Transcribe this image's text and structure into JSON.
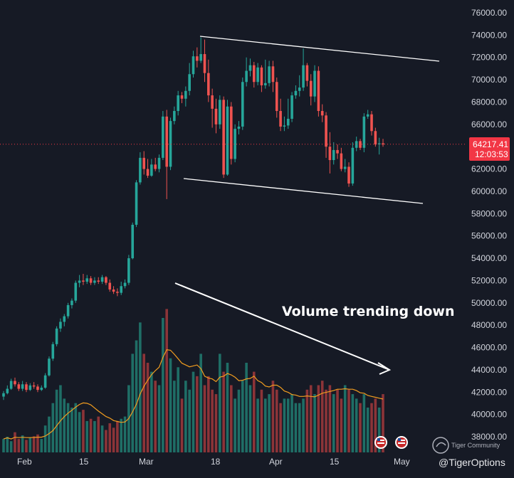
{
  "chart_data": {
    "type": "candlestick",
    "title": "",
    "y_ticks": [
      "76000.00",
      "74000.00",
      "72000.00",
      "70000.00",
      "68000.00",
      "66000.00",
      "64000.00",
      "62000.00",
      "60000.00",
      "58000.00",
      "56000.00",
      "54000.00",
      "52000.00",
      "50000.00",
      "48000.00",
      "46000.00",
      "44000.00",
      "42000.00",
      "40000.00",
      "38000.00"
    ],
    "x_ticks": [
      "Feb",
      "15",
      "Mar",
      "18",
      "Apr",
      "15",
      "May"
    ],
    "ylim": [
      37000,
      77000
    ],
    "grid": false,
    "last_price": "64217.41",
    "countdown": "12:03:53",
    "annotation": "Volume trending down",
    "colors": {
      "bg": "#161a25",
      "up": "#26a69a",
      "down": "#ef5350",
      "vol_up": "#1f6e66",
      "vol_down": "#8c3438",
      "ma": "#f29d1f",
      "price_tag": "#f23645",
      "line": "#ffffff"
    },
    "candles": [
      [
        41600,
        41900,
        41300,
        42100
      ],
      [
        41900,
        42300,
        41800,
        42600
      ],
      [
        42300,
        43000,
        42200,
        43200
      ],
      [
        43000,
        42700,
        42500,
        43300
      ],
      [
        42700,
        42300,
        42100,
        42900
      ],
      [
        42300,
        42700,
        42100,
        43000
      ],
      [
        42700,
        42200,
        42000,
        42900
      ],
      [
        42200,
        42600,
        42100,
        42800
      ],
      [
        42600,
        42500,
        42300,
        42900
      ],
      [
        42500,
        42200,
        42000,
        42700
      ],
      [
        42200,
        42400,
        42100,
        42600
      ],
      [
        42400,
        43500,
        42300,
        43700
      ],
      [
        43500,
        45000,
        43400,
        45200
      ],
      [
        45000,
        46300,
        44800,
        46500
      ],
      [
        46300,
        47700,
        46100,
        47900
      ],
      [
        47700,
        48300,
        47400,
        48600
      ],
      [
        48300,
        48800,
        47900,
        49000
      ],
      [
        48800,
        49800,
        48600,
        50000
      ],
      [
        49800,
        50200,
        49500,
        50400
      ],
      [
        50200,
        51800,
        50000,
        52000
      ],
      [
        51800,
        52000,
        51400,
        52500
      ],
      [
        52000,
        51900,
        51600,
        52600
      ],
      [
        51900,
        52200,
        51700,
        52500
      ],
      [
        52200,
        51800,
        51600,
        52400
      ],
      [
        51800,
        52000,
        51600,
        52300
      ],
      [
        52000,
        51900,
        51700,
        52300
      ],
      [
        51900,
        52300,
        51700,
        52500
      ],
      [
        52300,
        51800,
        51600,
        52400
      ],
      [
        51800,
        51200,
        51000,
        52100
      ],
      [
        51200,
        51000,
        50800,
        51500
      ],
      [
        51000,
        50900,
        50600,
        51300
      ],
      [
        50900,
        51500,
        50700,
        51900
      ],
      [
        51500,
        51800,
        51300,
        52100
      ],
      [
        51800,
        54000,
        51600,
        54300
      ],
      [
        54000,
        57000,
        53900,
        57200
      ],
      [
        57000,
        60800,
        56800,
        61000
      ],
      [
        60800,
        63000,
        60600,
        63500
      ],
      [
        63000,
        62000,
        61500,
        63600
      ],
      [
        62000,
        61400,
        61200,
        62900
      ],
      [
        61400,
        62400,
        61300,
        62900
      ],
      [
        62400,
        62000,
        61800,
        63000
      ],
      [
        62000,
        63000,
        61700,
        63300
      ],
      [
        63000,
        66700,
        62800,
        67200
      ],
      [
        66700,
        62200,
        59300,
        67300
      ],
      [
        62200,
        66300,
        61900,
        66600
      ],
      [
        66300,
        67200,
        66000,
        67600
      ],
      [
        67200,
        68600,
        66800,
        69000
      ],
      [
        68600,
        68300,
        67900,
        68900
      ],
      [
        68300,
        69000,
        67600,
        69400
      ],
      [
        69000,
        70500,
        68600,
        71500
      ],
      [
        70500,
        72100,
        70200,
        72600
      ],
      [
        72100,
        71700,
        71100,
        72900
      ],
      [
        71700,
        72300,
        71500,
        73800
      ],
      [
        72300,
        70600,
        69800,
        73600
      ],
      [
        70600,
        68600,
        68000,
        71800
      ],
      [
        68600,
        67400,
        65700,
        69200
      ],
      [
        67400,
        66000,
        65200,
        68300
      ],
      [
        66000,
        68200,
        65600,
        68600
      ],
      [
        68200,
        61500,
        61200,
        68500
      ],
      [
        61500,
        67600,
        61400,
        68200
      ],
      [
        67600,
        62900,
        62400,
        68000
      ],
      [
        62900,
        65600,
        62600,
        66000
      ],
      [
        65600,
        65800,
        65100,
        66300
      ],
      [
        65800,
        69800,
        65500,
        70200
      ],
      [
        69800,
        70800,
        69400,
        72000
      ],
      [
        70800,
        71300,
        70300,
        71900
      ],
      [
        71300,
        69800,
        69300,
        71600
      ],
      [
        69800,
        71100,
        69500,
        71500
      ],
      [
        71100,
        69500,
        68900,
        71300
      ],
      [
        69500,
        69700,
        69200,
        71800
      ],
      [
        69700,
        71200,
        69400,
        71700
      ],
      [
        71200,
        69800,
        68900,
        71700
      ],
      [
        69800,
        67200,
        66600,
        70200
      ],
      [
        67200,
        65800,
        65400,
        68300
      ],
      [
        65800,
        65900,
        65400,
        66700
      ],
      [
        65900,
        66500,
        65600,
        68300
      ],
      [
        66500,
        68600,
        66200,
        68900
      ],
      [
        68600,
        69000,
        68300,
        69500
      ],
      [
        69000,
        69300,
        68500,
        70400
      ],
      [
        69300,
        71300,
        69000,
        72800
      ],
      [
        71300,
        69900,
        69400,
        71500
      ],
      [
        69900,
        68500,
        67700,
        70500
      ],
      [
        68500,
        70800,
        68000,
        71300
      ],
      [
        70800,
        67200,
        66700,
        71200
      ],
      [
        67200,
        66800,
        66200,
        67800
      ],
      [
        66800,
        64000,
        63000,
        67100
      ],
      [
        64000,
        62800,
        61600,
        65300
      ],
      [
        62800,
        63700,
        62400,
        64400
      ],
      [
        63700,
        63400,
        62900,
        64200
      ],
      [
        63400,
        62000,
        61800,
        63900
      ],
      [
        62000,
        62200,
        61700,
        62900
      ],
      [
        62200,
        60700,
        60400,
        62600
      ],
      [
        60700,
        63900,
        60500,
        64400
      ],
      [
        63900,
        64500,
        63600,
        64900
      ],
      [
        64500,
        63900,
        63700,
        64700
      ],
      [
        63900,
        66700,
        63500,
        67000
      ],
      [
        66700,
        66900,
        66500,
        67300
      ],
      [
        66900,
        65400,
        65000,
        67200
      ],
      [
        65400,
        64200,
        64000,
        65700
      ],
      [
        64200,
        64300,
        63300,
        64800
      ],
      [
        64300,
        64200,
        64000,
        64700
      ]
    ],
    "volume": [
      30,
      35,
      25,
      45,
      30,
      38,
      28,
      33,
      36,
      40,
      30,
      60,
      80,
      110,
      140,
      150,
      120,
      110,
      100,
      110,
      90,
      95,
      70,
      75,
      70,
      80,
      60,
      50,
      65,
      55,
      70,
      75,
      80,
      150,
      220,
      250,
      290,
      220,
      200,
      180,
      160,
      150,
      300,
      320,
      210,
      160,
      190,
      120,
      160,
      140,
      180,
      170,
      220,
      150,
      170,
      140,
      130,
      220,
      180,
      200,
      150,
      120,
      140,
      160,
      200,
      150,
      180,
      120,
      140,
      120,
      130,
      160,
      140,
      110,
      120,
      120,
      130,
      110,
      110,
      120,
      140,
      150,
      130,
      150,
      160,
      140,
      150,
      130,
      140,
      120,
      150,
      140,
      130,
      120,
      110,
      130,
      100,
      110,
      120,
      100,
      130
    ]
  }
}
